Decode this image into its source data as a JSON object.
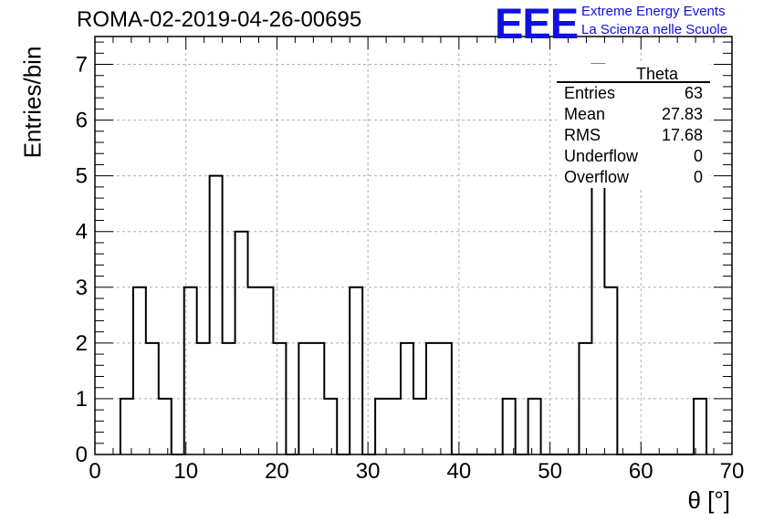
{
  "header": {
    "run_id": "ROMA-02-2019-04-26-00695",
    "logo_text": "EEE",
    "logo_line1": "Extreme Energy Events",
    "logo_line2": "La Scienza nelle Scuole"
  },
  "stats_box": {
    "title": "Theta",
    "rows": [
      {
        "label": "Entries",
        "value": "63"
      },
      {
        "label": "Mean",
        "value": "27.83"
      },
      {
        "label": "RMS",
        "value": "17.68"
      },
      {
        "label": "Underflow",
        "value": "0"
      },
      {
        "label": "Overflow",
        "value": "0"
      }
    ]
  },
  "chart_data": {
    "type": "bar",
    "style": "step-histogram",
    "bin_width": 1.4,
    "bin_start": 2.8,
    "values": [
      1,
      3,
      2,
      1,
      0,
      3,
      2,
      5,
      2,
      4,
      3,
      3,
      2,
      0,
      2,
      2,
      1,
      0,
      3,
      0,
      1,
      1,
      2,
      1,
      2,
      2,
      0,
      0,
      0,
      0,
      1,
      0,
      1,
      0,
      0,
      0,
      2,
      7,
      3,
      0,
      0,
      0,
      0,
      0,
      0,
      1
    ],
    "xlabel": "θ [°]",
    "ylabel": "Entries/bin",
    "xlim": [
      0,
      70
    ],
    "ylim": [
      0,
      7.5
    ],
    "xticks": [
      "0",
      "10",
      "20",
      "30",
      "40",
      "50",
      "60",
      "70"
    ],
    "yticks": [
      "0",
      "1",
      "2",
      "3",
      "4",
      "5",
      "6",
      "7"
    ],
    "grid": true,
    "line_color": "#000000",
    "grid_color": "#b0b0b0",
    "logo_color": "#1010e0"
  }
}
